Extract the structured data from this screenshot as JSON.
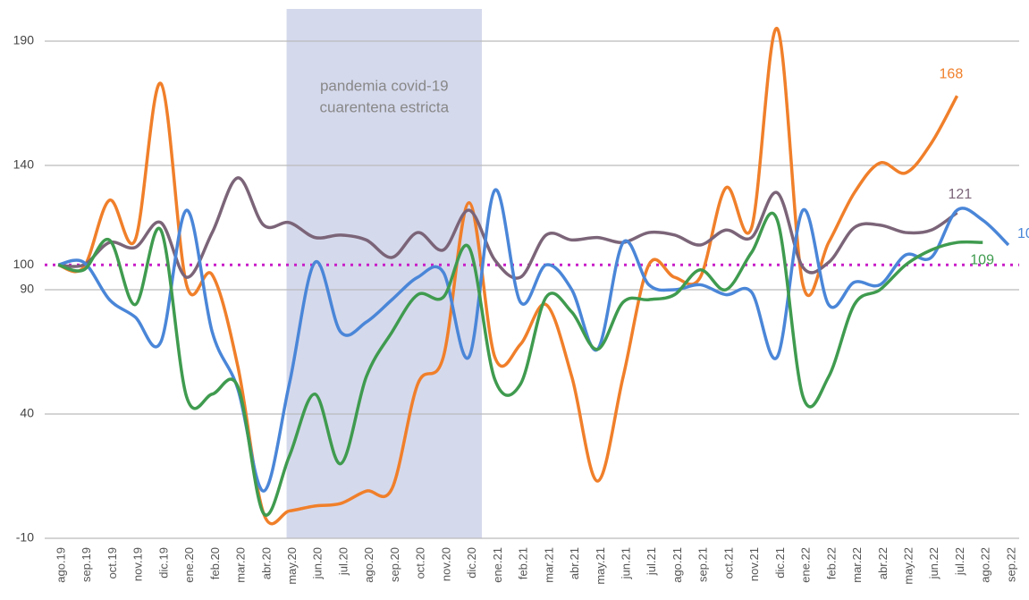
{
  "chart_data": {
    "type": "line",
    "categories": [
      "ago.19",
      "sep.19",
      "oct.19",
      "nov.19",
      "dic.19",
      "ene.20",
      "feb.20",
      "mar.20",
      "abr.20",
      "may.20",
      "jun.20",
      "jul.20",
      "ago.20",
      "sep.20",
      "oct.20",
      "nov.20",
      "dic.20",
      "ene.21",
      "feb.21",
      "mar.21",
      "abr.21",
      "may.21",
      "jun.21",
      "jul.21",
      "ago.21",
      "sep.21",
      "oct.21",
      "nov.21",
      "dic.21",
      "ene.22",
      "feb.22",
      "mar.22",
      "abr.22",
      "may.22",
      "jun.22",
      "jul.22",
      "ago.22",
      "sep.22"
    ],
    "series": [
      {
        "color": "#f07f2a",
        "values": [
          100,
          99,
          126,
          110,
          173,
          92,
          96,
          59,
          0,
          1,
          3,
          4,
          9,
          10,
          52,
          63,
          125,
          63,
          68,
          84,
          55,
          13,
          55,
          100,
          95,
          95,
          131,
          115,
          195,
          92,
          109,
          129,
          141,
          137,
          149,
          168,
          null,
          null
        ]
      },
      {
        "color": "#7b6478",
        "values": [
          100,
          100,
          109,
          107,
          117,
          95,
          113,
          135,
          116,
          117,
          111,
          112,
          110,
          103,
          113,
          106,
          122,
          102,
          95,
          112,
          110,
          111,
          109,
          113,
          112,
          108,
          114,
          111,
          129,
          99,
          101,
          115,
          116,
          113,
          114,
          121,
          null,
          null
        ]
      },
      {
        "color": "#4a86d8",
        "values": [
          100,
          101,
          86,
          79,
          69,
          122,
          73,
          50,
          9,
          52,
          101,
          73,
          77,
          86,
          95,
          97,
          63,
          130,
          85,
          100,
          90,
          66,
          109,
          92,
          90,
          92,
          88,
          89,
          63,
          122,
          84,
          93,
          92,
          104,
          103,
          122,
          118,
          108
        ]
      },
      {
        "color": "#3f9b4f",
        "values": [
          100,
          98,
          110,
          84,
          114,
          47,
          48,
          51,
          0,
          23,
          48,
          20,
          55,
          73,
          88,
          87,
          107,
          54,
          52,
          87,
          81,
          66,
          85,
          86,
          88,
          98,
          90,
          105,
          118,
          47,
          55,
          84,
          90,
          100,
          106,
          109,
          109,
          null
        ]
      }
    ],
    "ylim": [
      -10,
      190
    ],
    "yticks": [
      -10,
      40,
      90,
      100,
      140,
      190
    ],
    "grid": true,
    "baseline": {
      "value": 100,
      "color": "#c81ec8"
    },
    "shade": {
      "from": "may.20",
      "to": "dic.20",
      "color": "#d5d9ec"
    },
    "annotation": [
      "pandemia covid-19",
      "cuarentena estricta"
    ]
  }
}
